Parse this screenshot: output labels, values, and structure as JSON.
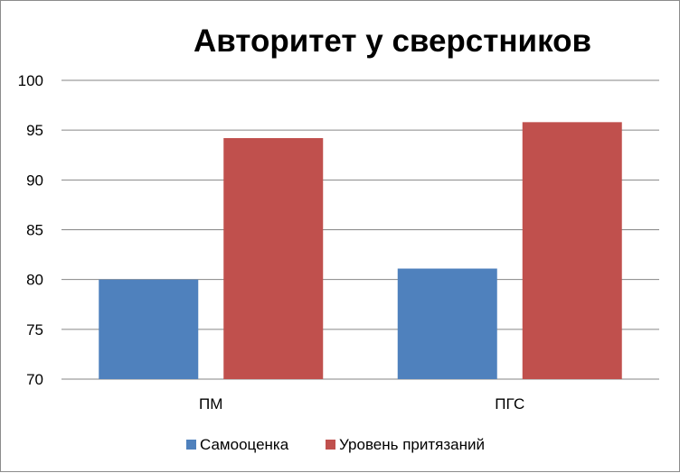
{
  "chart_data": {
    "type": "bar",
    "title": "Авторитет у сверстников",
    "categories": [
      "ПМ",
      "ПГС"
    ],
    "series": [
      {
        "name": "Самооценка",
        "values": [
          80.0,
          81.1
        ],
        "color": "#4f81bd"
      },
      {
        "name": "Уровень притязаний",
        "values": [
          94.2,
          95.8
        ],
        "color": "#c0504d"
      }
    ],
    "ylim": [
      70,
      100
    ],
    "yticks": [
      70,
      75,
      80,
      85,
      90,
      95,
      100
    ],
    "grid": true,
    "legend": "bottom",
    "gridline_color": "#868686"
  }
}
